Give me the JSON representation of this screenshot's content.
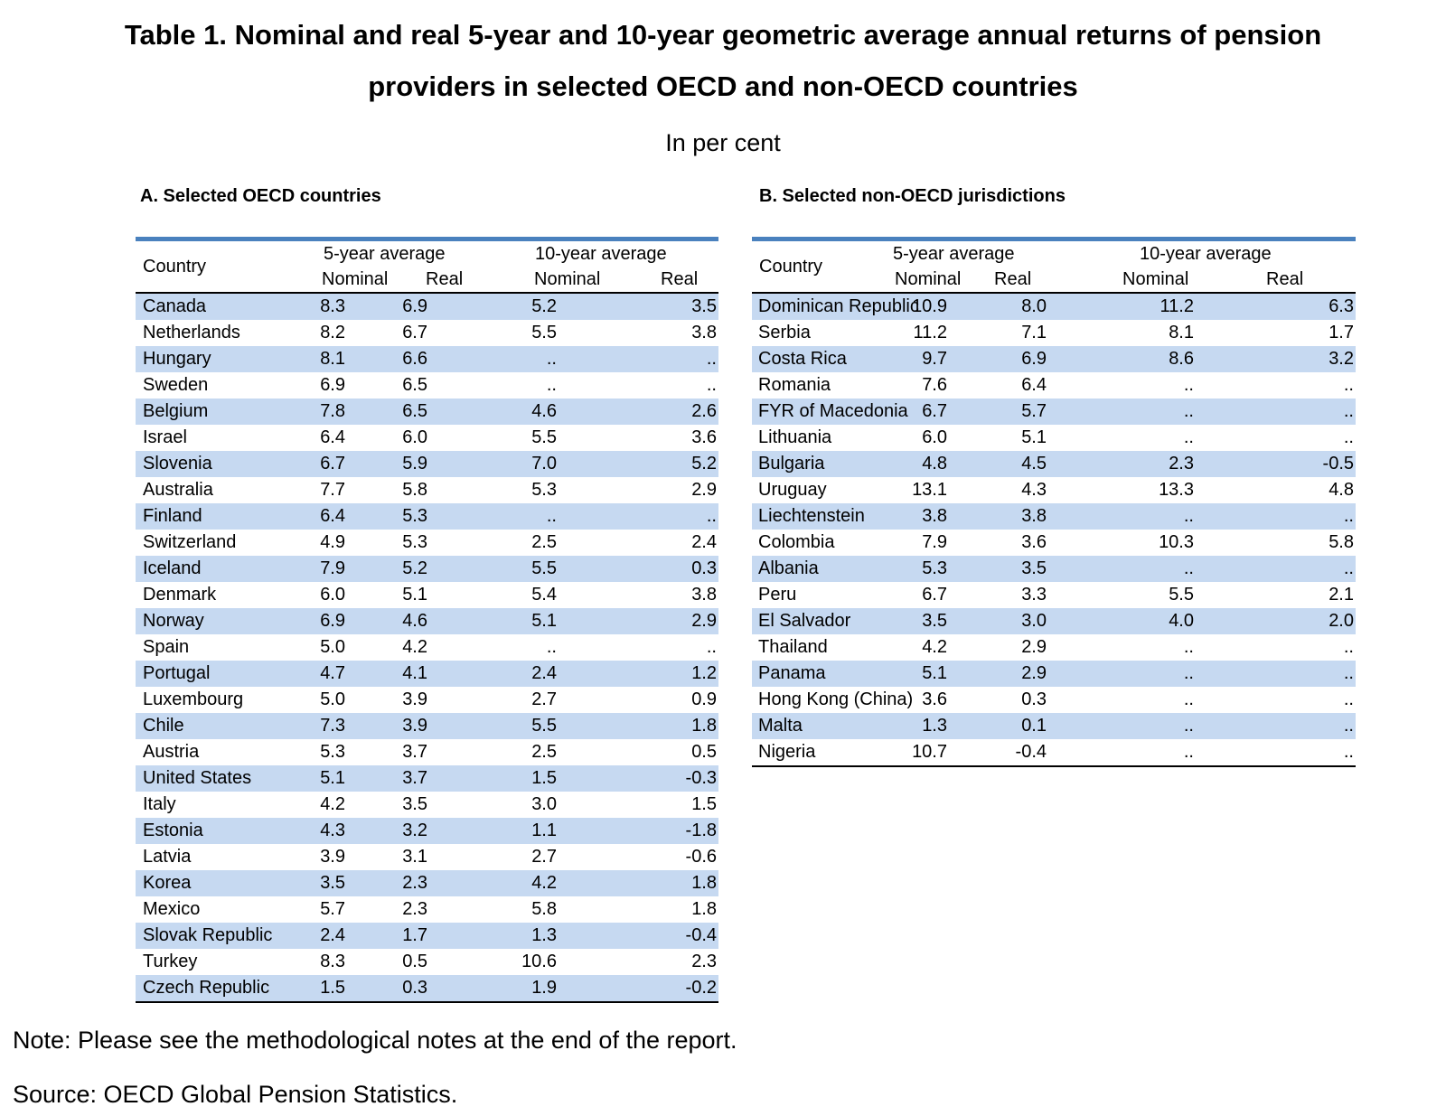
{
  "page": {
    "title_line1": "Table 1. Nominal and real 5-year and 10-year geometric average annual returns of pension",
    "title_line2": "providers in selected OECD and non-OECD countries",
    "subtitle": "In per cent",
    "note": "Note: Please see the methodological notes at the end of the report.",
    "source": "Source: OECD Global Pension Statistics."
  },
  "colors": {
    "accent_border": "#4A81BE",
    "row_stripe": "#C6D9F1"
  },
  "missing_value_symbol": "..",
  "tables": [
    {
      "section_title": "A. Selected OECD countries",
      "headers": {
        "country": "Country",
        "group_5y": "5-year average",
        "group_10y": "10-year average",
        "nominal": "Nominal",
        "real": "Real"
      },
      "rows": [
        {
          "country": "Canada",
          "values": [
            "8.3",
            "6.9",
            "5.2",
            "3.5"
          ]
        },
        {
          "country": "Netherlands",
          "values": [
            "8.2",
            "6.7",
            "5.5",
            "3.8"
          ]
        },
        {
          "country": "Hungary",
          "values": [
            "8.1",
            "6.6",
            "..",
            ".."
          ]
        },
        {
          "country": "Sweden",
          "values": [
            "6.9",
            "6.5",
            "..",
            ".."
          ]
        },
        {
          "country": "Belgium",
          "values": [
            "7.8",
            "6.5",
            "4.6",
            "2.6"
          ]
        },
        {
          "country": "Israel",
          "values": [
            "6.4",
            "6.0",
            "5.5",
            "3.6"
          ]
        },
        {
          "country": "Slovenia",
          "values": [
            "6.7",
            "5.9",
            "7.0",
            "5.2"
          ]
        },
        {
          "country": "Australia",
          "values": [
            "7.7",
            "5.8",
            "5.3",
            "2.9"
          ]
        },
        {
          "country": "Finland",
          "values": [
            "6.4",
            "5.3",
            "..",
            ".."
          ]
        },
        {
          "country": "Switzerland",
          "values": [
            "4.9",
            "5.3",
            "2.5",
            "2.4"
          ]
        },
        {
          "country": "Iceland",
          "values": [
            "7.9",
            "5.2",
            "5.5",
            "0.3"
          ]
        },
        {
          "country": "Denmark",
          "values": [
            "6.0",
            "5.1",
            "5.4",
            "3.8"
          ]
        },
        {
          "country": "Norway",
          "values": [
            "6.9",
            "4.6",
            "5.1",
            "2.9"
          ]
        },
        {
          "country": "Spain",
          "values": [
            "5.0",
            "4.2",
            "..",
            ".."
          ]
        },
        {
          "country": "Portugal",
          "values": [
            "4.7",
            "4.1",
            "2.4",
            "1.2"
          ]
        },
        {
          "country": "Luxembourg",
          "values": [
            "5.0",
            "3.9",
            "2.7",
            "0.9"
          ]
        },
        {
          "country": "Chile",
          "values": [
            "7.3",
            "3.9",
            "5.5",
            "1.8"
          ]
        },
        {
          "country": "Austria",
          "values": [
            "5.3",
            "3.7",
            "2.5",
            "0.5"
          ]
        },
        {
          "country": "United States",
          "values": [
            "5.1",
            "3.7",
            "1.5",
            "-0.3"
          ]
        },
        {
          "country": "Italy",
          "values": [
            "4.2",
            "3.5",
            "3.0",
            "1.5"
          ]
        },
        {
          "country": "Estonia",
          "values": [
            "4.3",
            "3.2",
            "1.1",
            "-1.8"
          ]
        },
        {
          "country": "Latvia",
          "values": [
            "3.9",
            "3.1",
            "2.7",
            "-0.6"
          ]
        },
        {
          "country": "Korea",
          "values": [
            "3.5",
            "2.3",
            "4.2",
            "1.8"
          ]
        },
        {
          "country": "Mexico",
          "values": [
            "5.7",
            "2.3",
            "5.8",
            "1.8"
          ]
        },
        {
          "country": "Slovak Republic",
          "values": [
            "2.4",
            "1.7",
            "1.3",
            "-0.4"
          ]
        },
        {
          "country": "Turkey",
          "values": [
            "8.3",
            "0.5",
            "10.6",
            "2.3"
          ]
        },
        {
          "country": "Czech Republic",
          "values": [
            "1.5",
            "0.3",
            "1.9",
            "-0.2"
          ]
        }
      ]
    },
    {
      "section_title": "B. Selected non-OECD jurisdictions",
      "headers": {
        "country": "Country",
        "group_5y": "5-year average",
        "group_10y": "10-year average",
        "nominal": "Nominal",
        "real": "Real"
      },
      "rows": [
        {
          "country": "Dominican Republic",
          "values": [
            "10.9",
            "8.0",
            "11.2",
            "6.3"
          ]
        },
        {
          "country": "Serbia",
          "values": [
            "11.2",
            "7.1",
            "8.1",
            "1.7"
          ]
        },
        {
          "country": "Costa Rica",
          "values": [
            "9.7",
            "6.9",
            "8.6",
            "3.2"
          ]
        },
        {
          "country": "Romania",
          "values": [
            "7.6",
            "6.4",
            "..",
            ".."
          ]
        },
        {
          "country": "FYR of Macedonia",
          "values": [
            "6.7",
            "5.7",
            "..",
            ".."
          ]
        },
        {
          "country": "Lithuania",
          "values": [
            "6.0",
            "5.1",
            "..",
            ".."
          ]
        },
        {
          "country": "Bulgaria",
          "values": [
            "4.8",
            "4.5",
            "2.3",
            "-0.5"
          ]
        },
        {
          "country": "Uruguay",
          "values": [
            "13.1",
            "4.3",
            "13.3",
            "4.8"
          ]
        },
        {
          "country": "Liechtenstein",
          "values": [
            "3.8",
            "3.8",
            "..",
            ".."
          ]
        },
        {
          "country": "Colombia",
          "values": [
            "7.9",
            "3.6",
            "10.3",
            "5.8"
          ]
        },
        {
          "country": "Albania",
          "values": [
            "5.3",
            "3.5",
            "..",
            ".."
          ]
        },
        {
          "country": "Peru",
          "values": [
            "6.7",
            "3.3",
            "5.5",
            "2.1"
          ]
        },
        {
          "country": "El Salvador",
          "values": [
            "3.5",
            "3.0",
            "4.0",
            "2.0"
          ]
        },
        {
          "country": "Thailand",
          "values": [
            "4.2",
            "2.9",
            "..",
            ".."
          ]
        },
        {
          "country": "Panama",
          "values": [
            "5.1",
            "2.9",
            "..",
            ".."
          ]
        },
        {
          "country": "Hong Kong (China)",
          "values": [
            "3.6",
            "0.3",
            "..",
            ".."
          ]
        },
        {
          "country": "Malta",
          "values": [
            "1.3",
            "0.1",
            "..",
            ".."
          ]
        },
        {
          "country": "Nigeria",
          "values": [
            "10.7",
            "-0.4",
            "..",
            ".."
          ]
        }
      ]
    }
  ]
}
